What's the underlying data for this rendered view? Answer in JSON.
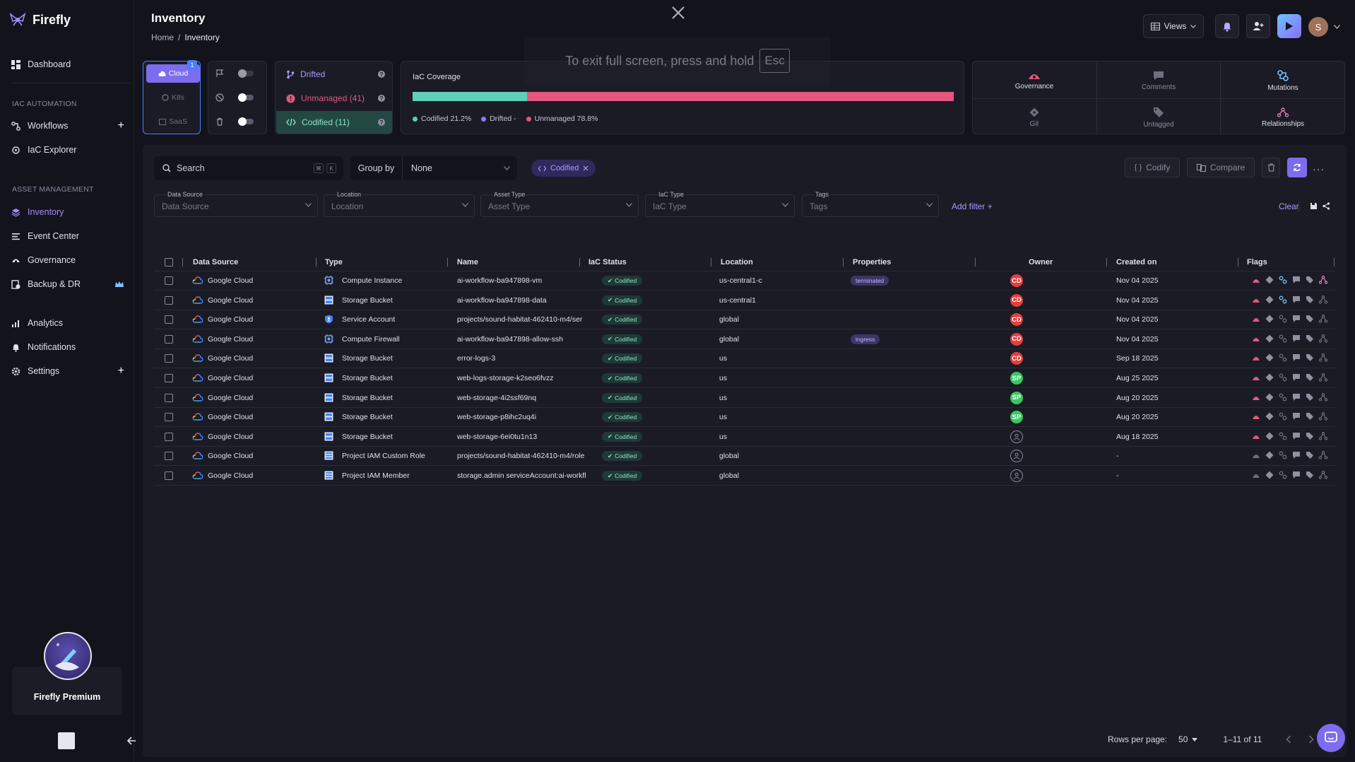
{
  "app": {
    "name": "Firefly"
  },
  "sidebar": {
    "dashboard": "Dashboard",
    "section_iac": "IAC AUTOMATION",
    "workflows": "Workflows",
    "iac_explorer": "IaC Explorer",
    "section_asset": "ASSET MANAGEMENT",
    "inventory": "Inventory",
    "event_center": "Event Center",
    "governance": "Governance",
    "backup": "Backup & DR",
    "analytics": "Analytics",
    "notifications": "Notifications",
    "settings": "Settings",
    "premium": "Firefly Premium"
  },
  "header": {
    "title": "Inventory",
    "breadcrumb_home": "Home",
    "breadcrumb_sep": "/",
    "breadcrumb_current": "Inventory",
    "views": "Views",
    "avatar": "S"
  },
  "fullscreen": {
    "message": "To exit full screen, press and hold",
    "key": "Esc"
  },
  "provider_tabs": {
    "cloud": "Cloud",
    "k8s": "K8s",
    "saas": "SaaS",
    "badge": "1"
  },
  "states": {
    "drifted": "Drifted",
    "unmanaged": "Unmanaged (41)",
    "codified": "Codified (11)"
  },
  "coverage": {
    "title": "IaC Coverage",
    "codified_pct": 21.2,
    "unmanaged_pct": 78.8,
    "legend_codified": "Codified 21.2%",
    "legend_drifted": "Drifted -",
    "legend_unmanaged": "Unmanaged 78.8%",
    "colors": {
      "codified": "#5ecfb8",
      "drifted": "#8b7cf6",
      "unmanaged": "#e4577f"
    }
  },
  "insights": {
    "governance": "Governance",
    "comments": "Comments",
    "mutations": "Mutations",
    "git": "Git",
    "untagged": "Untagged",
    "relationships": "Relationships"
  },
  "toolbar": {
    "search_placeholder": "Search",
    "kbd1": "⌘",
    "kbd2": "K",
    "group_by": "Group by",
    "group_by_value": "None",
    "chip": "Codified",
    "codify": "Codify",
    "compare": "Compare"
  },
  "filters": {
    "data_source": "Data Source",
    "location": "Location",
    "asset_type": "Asset Type",
    "iac_type": "IaC Type",
    "tags": "Tags",
    "add_filter": "Add filter +",
    "clear": "Clear"
  },
  "table": {
    "columns": {
      "data_source": "Data Source",
      "type": "Type",
      "name": "Name",
      "iac_status": "IaC Status",
      "location": "Location",
      "properties": "Properties",
      "owner": "Owner",
      "created_on": "Created on",
      "flags": "Flags"
    },
    "rows": [
      {
        "source": "Google Cloud",
        "type": "Compute Instance",
        "name": "ai-workflow-ba947898-vm",
        "status": "Codified",
        "location": "us-central1-c",
        "property": "terminated",
        "owner": "CD",
        "created": "Nov 04 2025"
      },
      {
        "source": "Google Cloud",
        "type": "Storage Bucket",
        "name": "ai-workflow-ba947898-data",
        "status": "Codified",
        "location": "us-central1",
        "property": "",
        "owner": "CD",
        "created": "Nov 04 2025"
      },
      {
        "source": "Google Cloud",
        "type": "Service Account",
        "name": "projects/sound-habitat-462410-m4/ser",
        "status": "Codified",
        "location": "global",
        "property": "",
        "owner": "CD",
        "created": "Nov 04 2025"
      },
      {
        "source": "Google Cloud",
        "type": "Compute Firewall",
        "name": "ai-workflow-ba947898-allow-ssh",
        "status": "Codified",
        "location": "global",
        "property": "ingress",
        "owner": "CD",
        "created": "Nov 04 2025"
      },
      {
        "source": "Google Cloud",
        "type": "Storage Bucket",
        "name": "error-logs-3",
        "status": "Codified",
        "location": "us",
        "property": "",
        "owner": "CD",
        "created": "Sep 18 2025"
      },
      {
        "source": "Google Cloud",
        "type": "Storage Bucket",
        "name": "web-logs-storage-k2seo6fvzz",
        "status": "Codified",
        "location": "us",
        "property": "",
        "owner": "SP",
        "created": "Aug 25 2025"
      },
      {
        "source": "Google Cloud",
        "type": "Storage Bucket",
        "name": "web-storage-4i2ssf69nq",
        "status": "Codified",
        "location": "us",
        "property": "",
        "owner": "SP",
        "created": "Aug 20 2025"
      },
      {
        "source": "Google Cloud",
        "type": "Storage Bucket",
        "name": "web-storage-p8ihc2uq4i",
        "status": "Codified",
        "location": "us",
        "property": "",
        "owner": "SP",
        "created": "Aug 20 2025"
      },
      {
        "source": "Google Cloud",
        "type": "Storage Bucket",
        "name": "web-storage-6ei0tu1n13",
        "status": "Codified",
        "location": "us",
        "property": "",
        "owner": "",
        "created": "Aug 18 2025"
      },
      {
        "source": "Google Cloud",
        "type": "Project IAM Custom Role",
        "name": "projects/sound-habitat-462410-m4/role",
        "status": "Codified",
        "location": "global",
        "property": "",
        "owner": "",
        "created": "-"
      },
      {
        "source": "Google Cloud",
        "type": "Project IAM Member",
        "name": "storage.admin serviceAccount:ai-workfl",
        "status": "Codified",
        "location": "global",
        "property": "",
        "owner": "",
        "created": "-"
      }
    ]
  },
  "pagination": {
    "rows_per_page_label": "Rows per page:",
    "rows_per_page": "50",
    "range": "1–11 of 11"
  }
}
